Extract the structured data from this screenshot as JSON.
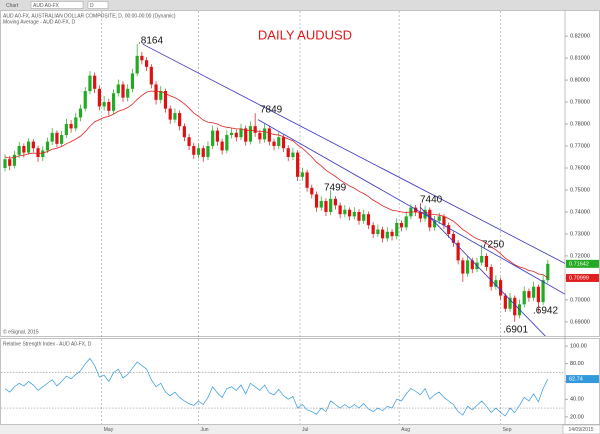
{
  "toolbar": {
    "tab": "Chart",
    "symbol": "AUD A0-FX",
    "interval": "D"
  },
  "chart_data": {
    "type": "candlestick",
    "title": "DAILY AUDUSD",
    "info": [
      "AUD A0-FX, AUSTRALIAN DOLLAR COMPOSITE, D, 00:00-00:00 (Dynamic)",
      "Moving Average - AUD A0-FX, D"
    ],
    "credit": "© eSignal, 2015",
    "rsi_title": "Relative Strength Index - AUD A0-FX, D",
    "date": "14/09/2015",
    "up_color": "#22aa22",
    "down_color": "#dd1111",
    "ma_color": "#e02020",
    "rsi_color": "#3399dd",
    "trend_color": "#3030c0",
    "grid": true,
    "ylim": [
      0.6836,
      0.8314
    ],
    "yticks": [
      {
        "value": 0.69,
        "label": "0.69000"
      },
      {
        "value": 0.7,
        "label": "0.70000"
      },
      {
        "value": 0.71,
        "label": "0.71000"
      },
      {
        "value": 0.72,
        "label": "0.72000"
      },
      {
        "value": 0.73,
        "label": "0.73000"
      },
      {
        "value": 0.74,
        "label": "0.74000"
      },
      {
        "value": 0.75,
        "label": "0.75000"
      },
      {
        "value": 0.76,
        "label": "0.76000"
      },
      {
        "value": 0.77,
        "label": "0.77000"
      },
      {
        "value": 0.78,
        "label": "0.78000"
      },
      {
        "value": 0.79,
        "label": "0.79000"
      },
      {
        "value": 0.8,
        "label": "0.80000"
      },
      {
        "value": 0.81,
        "label": "0.81000"
      },
      {
        "value": 0.82,
        "label": "0.82000"
      }
    ],
    "xticks": [
      {
        "value": 20.5,
        "label": "May"
      },
      {
        "value": 41,
        "label": "Jun"
      },
      {
        "value": 62.5,
        "label": "Jul"
      },
      {
        "value": 83.5,
        "label": "Aug"
      },
      {
        "value": 105,
        "label": "Sep"
      }
    ],
    "candles": [
      [
        0.76,
        0.7662,
        0.7585,
        0.764
      ],
      [
        0.764,
        0.7655,
        0.759,
        0.761
      ],
      [
        0.761,
        0.7678,
        0.7598,
        0.766
      ],
      [
        0.766,
        0.7718,
        0.7645,
        0.77
      ],
      [
        0.77,
        0.7712,
        0.7648,
        0.767
      ],
      [
        0.767,
        0.7735,
        0.766,
        0.772
      ],
      [
        0.772,
        0.7731,
        0.7672,
        0.769
      ],
      [
        0.769,
        0.7702,
        0.7628,
        0.765
      ],
      [
        0.765,
        0.7699,
        0.7632,
        0.768
      ],
      [
        0.768,
        0.7738,
        0.7667,
        0.772
      ],
      [
        0.772,
        0.7782,
        0.7705,
        0.776
      ],
      [
        0.776,
        0.7771,
        0.7694,
        0.771
      ],
      [
        0.771,
        0.7768,
        0.7696,
        0.775
      ],
      [
        0.775,
        0.7823,
        0.7737,
        0.78
      ],
      [
        0.78,
        0.7818,
        0.7761,
        0.778
      ],
      [
        0.778,
        0.7851,
        0.7766,
        0.783
      ],
      [
        0.783,
        0.7889,
        0.7812,
        0.787
      ],
      [
        0.787,
        0.7968,
        0.7858,
        0.795
      ],
      [
        0.795,
        0.8041,
        0.7936,
        0.802
      ],
      [
        0.802,
        0.8034,
        0.7941,
        0.796
      ],
      [
        0.796,
        0.7975,
        0.7862,
        0.788
      ],
      [
        0.788,
        0.7928,
        0.7861,
        0.79
      ],
      [
        0.79,
        0.7915,
        0.7838,
        0.786
      ],
      [
        0.786,
        0.7958,
        0.7846,
        0.794
      ],
      [
        0.794,
        0.8002,
        0.7925,
        0.798
      ],
      [
        0.798,
        0.7994,
        0.7901,
        0.792
      ],
      [
        0.792,
        0.7981,
        0.7903,
        0.796
      ],
      [
        0.796,
        0.8052,
        0.7944,
        0.803
      ],
      [
        0.803,
        0.8164,
        0.8017,
        0.811
      ],
      [
        0.811,
        0.8128,
        0.8071,
        0.809
      ],
      [
        0.809,
        0.8104,
        0.8041,
        0.806
      ],
      [
        0.806,
        0.8072,
        0.7962,
        0.798
      ],
      [
        0.798,
        0.7995,
        0.7889,
        0.791
      ],
      [
        0.791,
        0.7972,
        0.7894,
        0.795
      ],
      [
        0.795,
        0.7961,
        0.7852,
        0.787
      ],
      [
        0.787,
        0.7884,
        0.7801,
        0.782
      ],
      [
        0.782,
        0.7871,
        0.7806,
        0.785
      ],
      [
        0.785,
        0.7862,
        0.7771,
        0.779
      ],
      [
        0.779,
        0.7803,
        0.7722,
        0.774
      ],
      [
        0.774,
        0.7755,
        0.7682,
        0.77
      ],
      [
        0.77,
        0.7714,
        0.7641,
        0.766
      ],
      [
        0.766,
        0.7712,
        0.7644,
        0.769
      ],
      [
        0.769,
        0.7703,
        0.7628,
        0.765
      ],
      [
        0.765,
        0.7721,
        0.7636,
        0.77
      ],
      [
        0.77,
        0.7792,
        0.7686,
        0.777
      ],
      [
        0.777,
        0.7784,
        0.7701,
        0.772
      ],
      [
        0.772,
        0.7733,
        0.7662,
        0.768
      ],
      [
        0.768,
        0.7771,
        0.7667,
        0.775
      ],
      [
        0.775,
        0.7782,
        0.7735,
        0.776
      ],
      [
        0.776,
        0.7775,
        0.7721,
        0.774
      ],
      [
        0.774,
        0.7801,
        0.7726,
        0.778
      ],
      [
        0.778,
        0.7793,
        0.7702,
        0.772
      ],
      [
        0.772,
        0.7812,
        0.7707,
        0.779
      ],
      [
        0.779,
        0.7849,
        0.7742,
        0.776
      ],
      [
        0.776,
        0.7774,
        0.7711,
        0.773
      ],
      [
        0.773,
        0.7801,
        0.7716,
        0.778
      ],
      [
        0.778,
        0.7792,
        0.7702,
        0.772
      ],
      [
        0.772,
        0.7733,
        0.7681,
        0.77
      ],
      [
        0.77,
        0.7762,
        0.7686,
        0.774
      ],
      [
        0.774,
        0.7751,
        0.7672,
        0.769
      ],
      [
        0.769,
        0.7704,
        0.7631,
        0.765
      ],
      [
        0.765,
        0.7692,
        0.7636,
        0.767
      ],
      [
        0.767,
        0.7681,
        0.7541,
        0.756
      ],
      [
        0.756,
        0.7601,
        0.7543,
        0.758
      ],
      [
        0.758,
        0.7592,
        0.7492,
        0.751
      ],
      [
        0.751,
        0.7524,
        0.7461,
        0.748
      ],
      [
        0.748,
        0.7493,
        0.7401,
        0.742
      ],
      [
        0.742,
        0.7471,
        0.7405,
        0.745
      ],
      [
        0.745,
        0.7462,
        0.7382,
        0.74
      ],
      [
        0.74,
        0.7499,
        0.7386,
        0.746
      ],
      [
        0.746,
        0.7472,
        0.7411,
        0.743
      ],
      [
        0.743,
        0.7443,
        0.7372,
        0.739
      ],
      [
        0.739,
        0.7432,
        0.7376,
        0.741
      ],
      [
        0.741,
        0.7421,
        0.7362,
        0.738
      ],
      [
        0.738,
        0.7422,
        0.7366,
        0.74
      ],
      [
        0.74,
        0.7413,
        0.7342,
        0.736
      ],
      [
        0.736,
        0.7411,
        0.7346,
        0.739
      ],
      [
        0.739,
        0.7402,
        0.7322,
        0.734
      ],
      [
        0.734,
        0.7353,
        0.7282,
        0.73
      ],
      [
        0.73,
        0.7342,
        0.7286,
        0.732
      ],
      [
        0.732,
        0.7333,
        0.7262,
        0.728
      ],
      [
        0.728,
        0.7331,
        0.7266,
        0.731
      ],
      [
        0.731,
        0.7322,
        0.7271,
        0.729
      ],
      [
        0.729,
        0.7372,
        0.7276,
        0.735
      ],
      [
        0.735,
        0.7361,
        0.7312,
        0.733
      ],
      [
        0.733,
        0.7402,
        0.7316,
        0.738
      ],
      [
        0.738,
        0.7436,
        0.7366,
        0.742
      ],
      [
        0.742,
        0.7431,
        0.7382,
        0.74
      ],
      [
        0.74,
        0.744,
        0.7352,
        0.737
      ],
      [
        0.737,
        0.7428,
        0.7356,
        0.741
      ],
      [
        0.741,
        0.7421,
        0.7312,
        0.733
      ],
      [
        0.733,
        0.7382,
        0.7316,
        0.736
      ],
      [
        0.736,
        0.7396,
        0.7346,
        0.738
      ],
      [
        0.738,
        0.7391,
        0.7322,
        0.734
      ],
      [
        0.734,
        0.7352,
        0.7282,
        0.73
      ],
      [
        0.73,
        0.7311,
        0.7242,
        0.726
      ],
      [
        0.726,
        0.7272,
        0.7162,
        0.718
      ],
      [
        0.718,
        0.7193,
        0.7082,
        0.712
      ],
      [
        0.712,
        0.7201,
        0.7106,
        0.718
      ],
      [
        0.718,
        0.7192,
        0.7122,
        0.714
      ],
      [
        0.714,
        0.7191,
        0.7126,
        0.717
      ],
      [
        0.717,
        0.725,
        0.7156,
        0.72
      ],
      [
        0.72,
        0.7212,
        0.7132,
        0.715
      ],
      [
        0.715,
        0.7162,
        0.7042,
        0.706
      ],
      [
        0.706,
        0.7111,
        0.7046,
        0.709
      ],
      [
        0.709,
        0.7102,
        0.7002,
        0.702
      ],
      [
        0.702,
        0.7031,
        0.6945,
        0.696
      ],
      [
        0.696,
        0.7032,
        0.6946,
        0.701
      ],
      [
        0.701,
        0.7021,
        0.6901,
        0.693
      ],
      [
        0.693,
        0.7002,
        0.6916,
        0.698
      ],
      [
        0.698,
        0.7061,
        0.6966,
        0.704
      ],
      [
        0.704,
        0.7052,
        0.6992,
        0.701
      ],
      [
        0.701,
        0.7082,
        0.6996,
        0.706
      ],
      [
        0.706,
        0.7071,
        0.6942,
        0.699
      ],
      [
        0.699,
        0.7111,
        0.6976,
        0.709
      ],
      [
        0.709,
        0.7183,
        0.7076,
        0.71642
      ]
    ],
    "ma": [
      0.765,
      0.7645,
      0.7648,
      0.7655,
      0.7658,
      0.7665,
      0.7668,
      0.7666,
      0.7668,
      0.7675,
      0.7685,
      0.769,
      0.7698,
      0.771,
      0.772,
      0.7732,
      0.7745,
      0.7765,
      0.779,
      0.781,
      0.782,
      0.783,
      0.7835,
      0.7845,
      0.7858,
      0.7865,
      0.7875,
      0.789,
      0.7912,
      0.793,
      0.7945,
      0.795,
      0.7948,
      0.7948,
      0.794,
      0.7928,
      0.792,
      0.7908,
      0.7892,
      0.7872,
      0.785,
      0.7835,
      0.7818,
      0.7808,
      0.7806,
      0.78,
      0.779,
      0.7785,
      0.7782,
      0.7778,
      0.7778,
      0.777,
      0.7772,
      0.777,
      0.7765,
      0.7766,
      0.776,
      0.7752,
      0.775,
      0.7742,
      0.7732,
      0.7724,
      0.7705,
      0.769,
      0.767,
      0.765,
      0.7626,
      0.761,
      0.759,
      0.7576,
      0.7562,
      0.7545,
      0.7532,
      0.7518,
      0.7508,
      0.7494,
      0.7484,
      0.747,
      0.7454,
      0.7442,
      0.7428,
      0.7418,
      0.7408,
      0.7405,
      0.74,
      0.7398,
      0.74,
      0.74,
      0.7398,
      0.74,
      0.7392,
      0.7388,
      0.7386,
      0.738,
      0.737,
      0.7358,
      0.734,
      0.732,
      0.7306,
      0.729,
      0.7278,
      0.727,
      0.7258,
      0.724,
      0.7228,
      0.721,
      0.719,
      0.7176,
      0.716,
      0.715,
      0.7144,
      0.7134,
      0.713,
      0.7118,
      0.7115,
      0.70999
    ],
    "rsi": [
      52,
      48,
      54,
      58,
      55,
      60,
      56,
      50,
      54,
      58,
      62,
      55,
      60,
      66,
      63,
      68,
      72,
      80,
      86,
      78,
      65,
      67,
      60,
      70,
      74,
      64,
      68,
      75,
      82,
      78,
      74,
      62,
      54,
      58,
      48,
      44,
      48,
      42,
      38,
      35,
      33,
      38,
      34,
      42,
      54,
      47,
      42,
      52,
      54,
      50,
      56,
      46,
      58,
      54,
      50,
      56,
      47,
      45,
      51,
      44,
      40,
      43,
      30,
      34,
      28,
      26,
      23,
      30,
      26,
      38,
      34,
      30,
      34,
      30,
      34,
      30,
      35,
      29,
      26,
      30,
      27,
      32,
      30,
      40,
      38,
      46,
      52,
      49,
      45,
      52,
      40,
      45,
      48,
      42,
      38,
      34,
      26,
      22,
      32,
      28,
      33,
      38,
      32,
      25,
      30,
      25,
      21,
      30,
      25,
      33,
      42,
      38,
      46,
      37,
      52,
      62.74
    ],
    "rsi_ylim": [
      12,
      108
    ],
    "rsi_yticks": [
      {
        "value": 100,
        "label": "100.00"
      },
      {
        "value": 80,
        "label": "80.00"
      },
      {
        "value": 60,
        "label": "60.00"
      },
      {
        "value": 40,
        "label": "40.00"
      },
      {
        "value": 20,
        "label": "20.00"
      }
    ],
    "rsi_bands": [
      70,
      30
    ],
    "trendlines": [
      [
        29.2,
        0.8163,
        120.8,
        0.7142
      ],
      [
        53.6,
        0.782,
        120.8,
        0.7
      ],
      [
        87.9,
        0.7423,
        115.5,
        0.6813
      ]
    ],
    "annotations": [
      ".8164",
      "7849",
      "7499",
      "7440",
      "7250",
      ".6942",
      ".6901"
    ]
  }
}
